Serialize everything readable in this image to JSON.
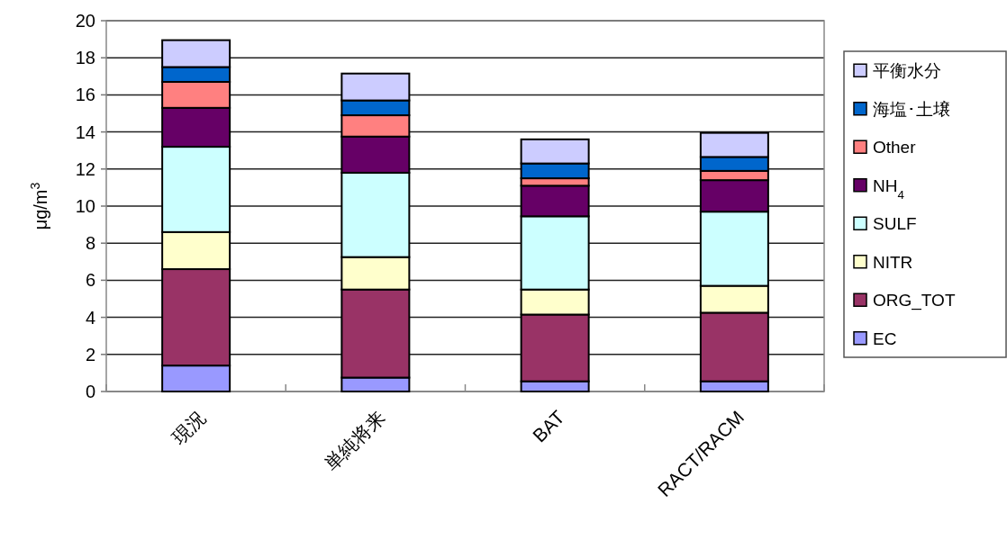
{
  "chart_data": {
    "type": "bar",
    "stacked": true,
    "ylabel": "μg/m$^{3}$",
    "categories": [
      "現況",
      "単純将来",
      "BAT",
      "RACT/RACM"
    ],
    "series": [
      {
        "name": "EC",
        "color": "#9999ff",
        "values": [
          1.4,
          0.75,
          0.55,
          0.55
        ]
      },
      {
        "name": "ORG_TOT",
        "color": "#993366",
        "values": [
          5.2,
          4.75,
          3.6,
          3.7
        ]
      },
      {
        "name": "NITR",
        "color": "#ffffcc",
        "values": [
          2.0,
          1.75,
          1.35,
          1.45
        ]
      },
      {
        "name": "SULF",
        "color": "#ccffff",
        "values": [
          4.6,
          4.55,
          3.95,
          4.0
        ]
      },
      {
        "name": "NH$_{4}$",
        "color": "#660066",
        "values": [
          2.1,
          1.95,
          1.65,
          1.7
        ]
      },
      {
        "name": "Other",
        "color": "#ff8080",
        "values": [
          1.4,
          1.15,
          0.4,
          0.5
        ]
      },
      {
        "name": "海塩･土壌",
        "color": "#0066cc",
        "values": [
          0.8,
          0.8,
          0.8,
          0.75
        ]
      },
      {
        "name": "平衡水分",
        "color": "#ccccff",
        "values": [
          1.45,
          1.45,
          1.3,
          1.3
        ]
      }
    ],
    "ylim": [
      0,
      20
    ],
    "yticks": [
      0,
      2,
      4,
      6,
      8,
      10,
      12,
      14,
      16,
      18,
      20
    ],
    "grid": "y",
    "legend": "right"
  }
}
